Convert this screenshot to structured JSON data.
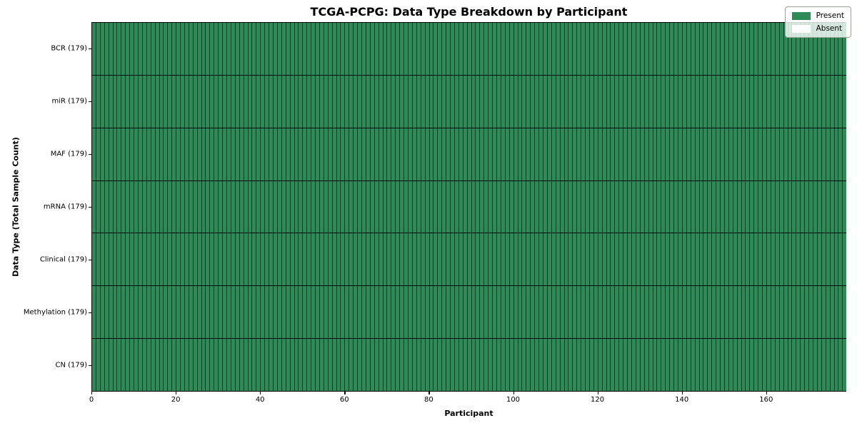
{
  "chart_data": {
    "type": "heatmap",
    "title": "TCGA-PCPG: Data Type Breakdown by Participant",
    "xlabel": "Participant",
    "ylabel": "Data Type (Total Sample Count)",
    "x_range": [
      0,
      179
    ],
    "x_ticks": [
      0,
      20,
      40,
      60,
      80,
      100,
      120,
      140,
      160
    ],
    "n_participants": 179,
    "categories": [
      "BCR (179)",
      "miR (179)",
      "MAF (179)",
      "mRNA (179)",
      "Clinical (179)",
      "Methylation (179)",
      "CN (179)"
    ],
    "rows": [
      {
        "label": "BCR (179)",
        "data_type": "BCR",
        "total_samples": 179,
        "present_count": 179,
        "absent_count": 0
      },
      {
        "label": "miR (179)",
        "data_type": "miR",
        "total_samples": 179,
        "present_count": 179,
        "absent_count": 0
      },
      {
        "label": "MAF (179)",
        "data_type": "MAF",
        "total_samples": 179,
        "present_count": 179,
        "absent_count": 0
      },
      {
        "label": "mRNA (179)",
        "data_type": "mRNA",
        "total_samples": 179,
        "present_count": 179,
        "absent_count": 0
      },
      {
        "label": "Clinical (179)",
        "data_type": "Clinical",
        "total_samples": 179,
        "present_count": 179,
        "absent_count": 0
      },
      {
        "label": "Methylation (179)",
        "data_type": "Methylation",
        "total_samples": 179,
        "present_count": 179,
        "absent_count": 0
      },
      {
        "label": "CN (179)",
        "data_type": "CN",
        "total_samples": 179,
        "present_count": 179,
        "absent_count": 0
      }
    ],
    "legend": {
      "position": "upper right",
      "entries": [
        {
          "label": "Present",
          "color": "#2e8b57"
        },
        {
          "label": "Absent",
          "color": "#ffffff"
        }
      ]
    },
    "colors": {
      "present": "#2e8b57",
      "absent": "#ffffff",
      "cell_edge": "rgba(0,0,0,0.55)",
      "row_separator": "#0b0b0b"
    },
    "grid": false
  }
}
